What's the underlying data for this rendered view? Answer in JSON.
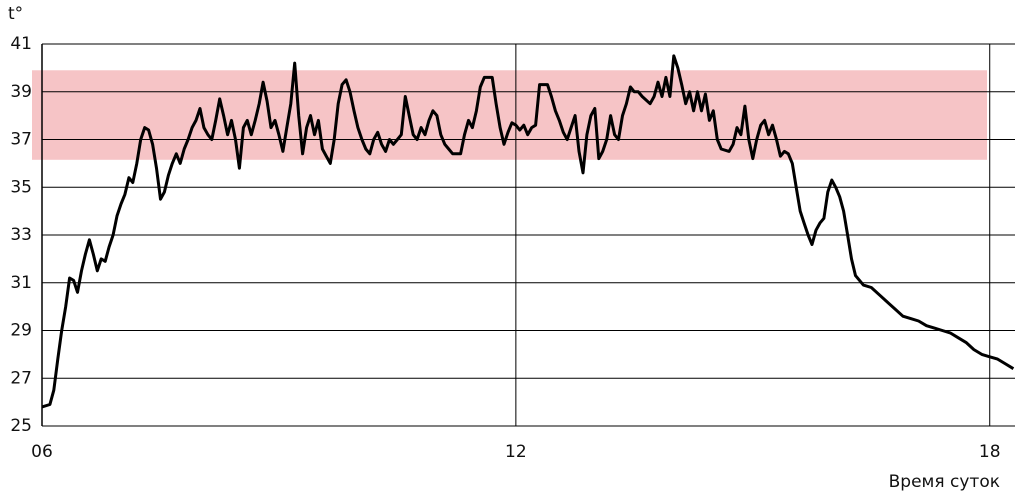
{
  "chart_data": {
    "type": "line",
    "y_label": "t°",
    "x_label": "Время суток",
    "xlim": [
      6,
      18.32
    ],
    "xticks": [
      {
        "value": 6,
        "label": "06"
      },
      12,
      18
    ],
    "ylim": [
      25,
      41
    ],
    "yticks": [
      25,
      27,
      29,
      31,
      33,
      35,
      37,
      39,
      41
    ],
    "grid": true,
    "band": [
      36.15,
      39.9
    ],
    "band_color": "#f6c4c6",
    "x": [
      6.0,
      6.1,
      6.15,
      6.2,
      6.25,
      6.3,
      6.35,
      6.4,
      6.45,
      6.5,
      6.55,
      6.6,
      6.65,
      6.7,
      6.75,
      6.8,
      6.85,
      6.9,
      6.95,
      7.0,
      7.05,
      7.1,
      7.15,
      7.2,
      7.25,
      7.3,
      7.35,
      7.4,
      7.45,
      7.5,
      7.55,
      7.6,
      7.65,
      7.7,
      7.75,
      7.8,
      7.85,
      7.9,
      7.95,
      8.0,
      8.05,
      8.1,
      8.15,
      8.2,
      8.25,
      8.3,
      8.35,
      8.4,
      8.45,
      8.5,
      8.55,
      8.6,
      8.65,
      8.7,
      8.75,
      8.8,
      8.85,
      8.9,
      8.95,
      9.0,
      9.05,
      9.1,
      9.15,
      9.2,
      9.25,
      9.3,
      9.35,
      9.4,
      9.45,
      9.5,
      9.55,
      9.6,
      9.65,
      9.7,
      9.75,
      9.8,
      9.85,
      9.9,
      9.95,
      10.0,
      10.05,
      10.1,
      10.15,
      10.2,
      10.25,
      10.3,
      10.35,
      10.4,
      10.45,
      10.5,
      10.55,
      10.6,
      10.65,
      10.7,
      10.75,
      10.8,
      10.85,
      10.9,
      10.95,
      11.0,
      11.05,
      11.1,
      11.15,
      11.2,
      11.3,
      11.35,
      11.4,
      11.45,
      11.5,
      11.55,
      11.6,
      11.7,
      11.75,
      11.8,
      11.85,
      11.9,
      11.95,
      12.0,
      12.05,
      12.1,
      12.15,
      12.2,
      12.25,
      12.3,
      12.4,
      12.45,
      12.5,
      12.55,
      12.6,
      12.65,
      12.7,
      12.75,
      12.8,
      12.85,
      12.9,
      12.95,
      13.0,
      13.05,
      13.1,
      13.15,
      13.2,
      13.25,
      13.3,
      13.35,
      13.4,
      13.45,
      13.5,
      13.55,
      13.6,
      13.7,
      13.75,
      13.8,
      13.85,
      13.9,
      13.95,
      14.0,
      14.05,
      14.1,
      14.15,
      14.2,
      14.25,
      14.3,
      14.35,
      14.4,
      14.45,
      14.5,
      14.55,
      14.6,
      14.7,
      14.75,
      14.8,
      14.85,
      14.9,
      14.95,
      15.0,
      15.05,
      15.1,
      15.15,
      15.2,
      15.25,
      15.3,
      15.35,
      15.4,
      15.45,
      15.5,
      15.55,
      15.6,
      15.65,
      15.7,
      15.75,
      15.8,
      15.85,
      15.9,
      15.95,
      16.0,
      16.05,
      16.1,
      16.15,
      16.2,
      16.25,
      16.3,
      16.4,
      16.5,
      16.6,
      16.7,
      16.8,
      16.9,
      17.0,
      17.1,
      17.2,
      17.3,
      17.4,
      17.5,
      17.6,
      17.7,
      17.8,
      17.9,
      18.0,
      18.1,
      18.2,
      18.3
    ],
    "series": [
      {
        "color": "#000000",
        "values": [
          25.8,
          25.9,
          26.5,
          27.8,
          29,
          30,
          31.2,
          31.1,
          30.6,
          31.5,
          32.2,
          32.8,
          32.2,
          31.5,
          32.0,
          31.9,
          32.5,
          33.0,
          33.8,
          34.3,
          34.7,
          35.4,
          35.2,
          36.0,
          37.0,
          37.5,
          37.4,
          36.8,
          35.8,
          34.5,
          34.8,
          35.5,
          36.0,
          36.4,
          36.0,
          36.6,
          37.0,
          37.5,
          37.8,
          38.3,
          37.5,
          37.2,
          37.0,
          37.8,
          38.7,
          38.0,
          37.2,
          37.8,
          37.0,
          35.8,
          37.5,
          37.8,
          37.2,
          37.8,
          38.5,
          39.4,
          38.6,
          37.5,
          37.8,
          37.2,
          36.5,
          37.5,
          38.5,
          40.2,
          38.0,
          36.4,
          37.5,
          38.0,
          37.2,
          37.8,
          36.6,
          36.3,
          36.0,
          37.0,
          38.5,
          39.3,
          39.5,
          39.0,
          38.2,
          37.5,
          37.0,
          36.6,
          36.4,
          37.0,
          37.3,
          36.8,
          36.5,
          37.0,
          36.8,
          37.0,
          37.2,
          38.8,
          38.0,
          37.2,
          37.0,
          37.5,
          37.2,
          37.8,
          38.2,
          38.0,
          37.2,
          36.8,
          36.6,
          36.4,
          36.4,
          37.2,
          37.8,
          37.5,
          38.2,
          39.2,
          39.6,
          39.6,
          38.5,
          37.5,
          36.8,
          37.3,
          37.7,
          37.6,
          37.4,
          37.6,
          37.2,
          37.5,
          37.6,
          39.3,
          39.3,
          38.8,
          38.2,
          37.8,
          37.3,
          37.0,
          37.5,
          38.0,
          36.5,
          35.6,
          37.2,
          38.0,
          38.3,
          36.2,
          36.5,
          37.0,
          38.0,
          37.2,
          37.0,
          38.0,
          38.5,
          39.2,
          39.0,
          39.0,
          38.8,
          38.5,
          38.8,
          39.4,
          38.8,
          39.6,
          38.8,
          40.5,
          40.0,
          39.3,
          38.5,
          39.0,
          38.2,
          39.0,
          38.2,
          38.9,
          37.8,
          38.2,
          37.0,
          36.6,
          36.5,
          36.8,
          37.5,
          37.2,
          38.4,
          37.0,
          36.2,
          37.0,
          37.6,
          37.8,
          37.2,
          37.6,
          37.0,
          36.3,
          36.5,
          36.4,
          36.0,
          35.0,
          34.0,
          33.5,
          33.0,
          32.6,
          33.2,
          33.5,
          33.7,
          34.8,
          35.3,
          35.0,
          34.6,
          34.0,
          33.0,
          32.0,
          31.3,
          30.9,
          30.8,
          30.5,
          30.2,
          29.9,
          29.6,
          29.5,
          29.4,
          29.2,
          29.1,
          29.0,
          28.9,
          28.7,
          28.5,
          28.2,
          28.0,
          27.9,
          27.8,
          27.6,
          27.4
        ]
      }
    ]
  }
}
